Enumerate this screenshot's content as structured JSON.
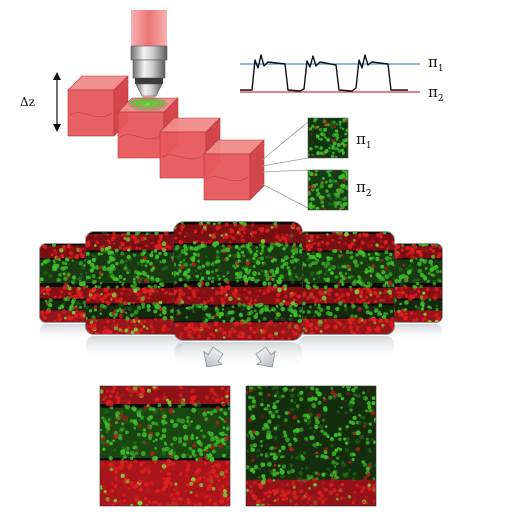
{
  "labels": {
    "dz": "Δz",
    "pi1": "π",
    "pi1_sub": "1",
    "pi2": "π",
    "pi2_sub": "2",
    "thumb1": "π",
    "thumb1_sub": "1",
    "thumb2": "π",
    "thumb2_sub": "2"
  },
  "colors": {
    "laser": "#e85d5d",
    "cube_front": "#e8585c",
    "cube_top": "#f28a8a",
    "cube_side": "#d13e43",
    "trace": "#111111",
    "level_pi1": "#4a90d9",
    "level_pi2": "#d9343a",
    "tissue_red": "#c4161c",
    "tissue_green": "#3fbf2a",
    "arrow_fill": "#cfd3d6"
  },
  "icons": {
    "objective": "microscope-objective-icon",
    "arrow_left": "down-left-arrow-icon",
    "arrow_right": "down-right-arrow-icon"
  }
}
